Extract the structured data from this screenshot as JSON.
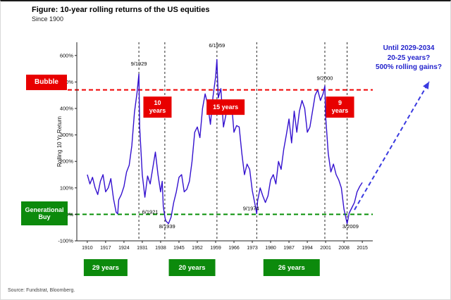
{
  "header": {
    "title": "Figure: 10-year rolling returns of the US equities",
    "subtitle": "Since 1900"
  },
  "footer": {
    "source": "Source: Fundstrat, Bloomberg."
  },
  "side_labels": {
    "bubble": "Bubble",
    "generational_buy": "Generational Buy"
  },
  "right_note": {
    "lines": [
      "Until 2029-2034",
      "20-25 years?",
      "500% rolling gains?"
    ]
  },
  "colors": {
    "line": "#3411cf",
    "bubble_red": "#e80000",
    "buy_green": "#0c8a0c",
    "note_blue": "#2424cc",
    "bubble_line": "#f00000",
    "buy_line": "#089008",
    "arrow_blue": "#3a3ae0"
  },
  "chart_data": {
    "type": "line",
    "title": "Figure: 10-year rolling returns of the US equities",
    "subtitle": "Since 1900",
    "xlabel": "",
    "ylabel": "Rolling 10 Yr Return",
    "xlim": [
      1906,
      2019
    ],
    "ylim": [
      -100,
      650
    ],
    "grid": false,
    "x_ticks": [
      1910,
      1917,
      1924,
      1931,
      1938,
      1945,
      1952,
      1959,
      1966,
      1973,
      1980,
      1987,
      1994,
      2001,
      2008,
      2015
    ],
    "y_ticks_pct": [
      -100,
      0,
      100,
      200,
      300,
      400,
      500,
      600
    ],
    "bubble_line_pct": 470,
    "generational_buy_line_pct": 0,
    "vertical_marker_years": [
      1929.7,
      1939.6,
      1959.5,
      1974.7,
      2000.7,
      2009.2
    ],
    "series": [
      {
        "name": "Rolling 10 Yr Return",
        "points": [
          [
            1910,
            150
          ],
          [
            1911,
            115
          ],
          [
            1912,
            140
          ],
          [
            1913,
            100
          ],
          [
            1914,
            75
          ],
          [
            1915,
            125
          ],
          [
            1916,
            150
          ],
          [
            1917,
            85
          ],
          [
            1918,
            100
          ],
          [
            1919,
            135
          ],
          [
            1920,
            60
          ],
          [
            1921,
            8
          ],
          [
            1921.6,
            2
          ],
          [
            1922,
            55
          ],
          [
            1923,
            75
          ],
          [
            1924,
            105
          ],
          [
            1925,
            160
          ],
          [
            1926,
            185
          ],
          [
            1927,
            260
          ],
          [
            1928,
            385
          ],
          [
            1929,
            460
          ],
          [
            1929.7,
            530
          ],
          [
            1930,
            330
          ],
          [
            1931,
            150
          ],
          [
            1932,
            65
          ],
          [
            1933,
            145
          ],
          [
            1934,
            115
          ],
          [
            1935,
            175
          ],
          [
            1936,
            235
          ],
          [
            1937,
            150
          ],
          [
            1938,
            85
          ],
          [
            1938.6,
            125
          ],
          [
            1939,
            30
          ],
          [
            1939.7,
            -15
          ],
          [
            1940,
            -25
          ],
          [
            1941,
            -35
          ],
          [
            1942,
            -10
          ],
          [
            1943,
            45
          ],
          [
            1944,
            85
          ],
          [
            1945,
            140
          ],
          [
            1946,
            150
          ],
          [
            1947,
            85
          ],
          [
            1948,
            95
          ],
          [
            1949,
            125
          ],
          [
            1950,
            200
          ],
          [
            1951,
            310
          ],
          [
            1952,
            330
          ],
          [
            1953,
            290
          ],
          [
            1954,
            400
          ],
          [
            1955,
            455
          ],
          [
            1956,
            415
          ],
          [
            1957,
            340
          ],
          [
            1958,
            445
          ],
          [
            1959,
            520
          ],
          [
            1959.5,
            585
          ],
          [
            1960,
            440
          ],
          [
            1961,
            475
          ],
          [
            1962,
            330
          ],
          [
            1963,
            380
          ],
          [
            1964,
            405
          ],
          [
            1965,
            430
          ],
          [
            1966,
            310
          ],
          [
            1967,
            335
          ],
          [
            1968,
            330
          ],
          [
            1969,
            230
          ],
          [
            1970,
            150
          ],
          [
            1971,
            190
          ],
          [
            1972,
            170
          ],
          [
            1973,
            90
          ],
          [
            1974,
            40
          ],
          [
            1974.7,
            2
          ],
          [
            1975,
            50
          ],
          [
            1976,
            100
          ],
          [
            1977,
            70
          ],
          [
            1978,
            45
          ],
          [
            1979,
            70
          ],
          [
            1980,
            130
          ],
          [
            1981,
            150
          ],
          [
            1982,
            115
          ],
          [
            1983,
            200
          ],
          [
            1984,
            170
          ],
          [
            1985,
            245
          ],
          [
            1986,
            300
          ],
          [
            1987,
            360
          ],
          [
            1988,
            270
          ],
          [
            1989,
            390
          ],
          [
            1990,
            310
          ],
          [
            1991,
            390
          ],
          [
            1992,
            430
          ],
          [
            1993,
            400
          ],
          [
            1994,
            310
          ],
          [
            1995,
            330
          ],
          [
            1996,
            390
          ],
          [
            1997,
            450
          ],
          [
            1998,
            470
          ],
          [
            1999,
            430
          ],
          [
            2000,
            455
          ],
          [
            2000.7,
            485
          ],
          [
            2001,
            370
          ],
          [
            2002,
            230
          ],
          [
            2003,
            160
          ],
          [
            2004,
            190
          ],
          [
            2005,
            150
          ],
          [
            2006,
            130
          ],
          [
            2007,
            100
          ],
          [
            2008,
            20
          ],
          [
            2009.2,
            -35
          ],
          [
            2010,
            5
          ],
          [
            2011,
            25
          ],
          [
            2012,
            45
          ],
          [
            2013,
            85
          ],
          [
            2014,
            105
          ],
          [
            2015,
            120
          ]
        ]
      }
    ],
    "peak_labels": [
      {
        "text": "9/1929",
        "year": 1929.7,
        "pct": 562
      },
      {
        "text": "6/1959",
        "year": 1959.5,
        "pct": 632
      },
      {
        "text": "9/2000",
        "year": 2000.7,
        "pct": 508
      }
    ],
    "trough_labels": [
      {
        "text": "6/1921",
        "year": 1934,
        "pct": 3
      },
      {
        "text": "8/1939",
        "year": 1940.5,
        "pct": -52
      },
      {
        "text": "9/1974",
        "year": 1972.5,
        "pct": 16
      },
      {
        "text": "3/2009",
        "year": 2010.5,
        "pct": -52
      }
    ],
    "red_duration_boxes": [
      {
        "lines": [
          "10",
          "years"
        ],
        "year": 1936.8,
        "pct": 405
      },
      {
        "lines": [
          "15 years"
        ],
        "year": 1962.8,
        "pct": 405
      },
      {
        "lines": [
          "9",
          "years"
        ],
        "year": 2006.5,
        "pct": 405
      }
    ],
    "green_duration_boxes": [
      {
        "label": "29 years",
        "year": 1917
      },
      {
        "label": "20 years",
        "year": 1950
      },
      {
        "label": "26 years",
        "year": 1988
      }
    ]
  }
}
